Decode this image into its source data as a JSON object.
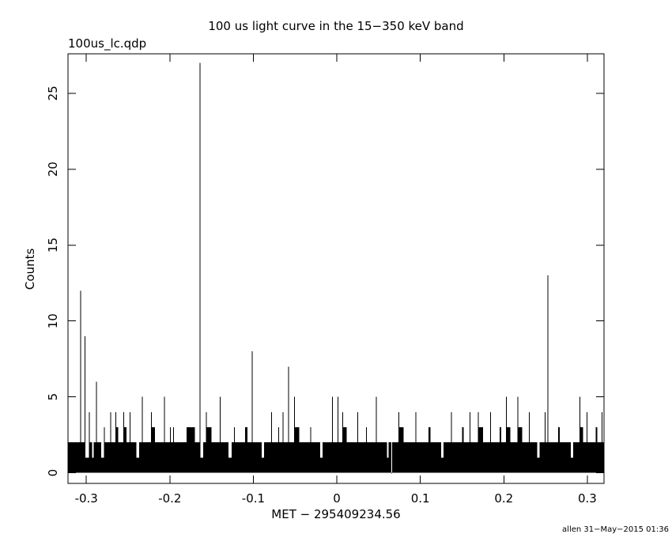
{
  "chart_data": {
    "type": "histogram",
    "title": "100 us light curve in the 15−350 keV band",
    "file_label": "100us_lc.qdp",
    "xlabel": "MET − 295409234.56",
    "ylabel": "Counts",
    "footer": "allen 31−May−2015 01:36",
    "color": "#000000",
    "xlim": [
      -0.322,
      0.32
    ],
    "ylim": [
      -0.7,
      27.6
    ],
    "xticks": [
      -0.3,
      -0.2,
      -0.1,
      0,
      0.1,
      0.2,
      0.3
    ],
    "yticks": [
      0,
      5,
      10,
      15,
      20,
      25
    ],
    "x": [
      -0.322,
      -0.3075,
      -0.3069,
      -0.302,
      -0.3014,
      -0.297,
      -0.2964,
      -0.293,
      -0.291,
      -0.2885,
      -0.2879,
      -0.282,
      -0.279,
      -0.2784,
      -0.2715,
      -0.2709,
      -0.265,
      -0.2644,
      -0.262,
      -0.2555,
      -0.2549,
      -0.252,
      -0.248,
      -0.2474,
      -0.24,
      -0.237,
      -0.2335,
      -0.2329,
      -0.2225,
      -0.2219,
      -0.218,
      -0.207,
      -0.2064,
      -0.2,
      -0.199,
      -0.196,
      -0.195,
      -0.18,
      -0.17,
      -0.1645,
      -0.1639,
      -0.16,
      -0.157,
      -0.1564,
      -0.15,
      -0.14,
      -0.1394,
      -0.13,
      -0.126,
      -0.123,
      -0.1224,
      -0.11,
      -0.107,
      -0.102,
      -0.1014,
      -0.09,
      -0.087,
      -0.0785,
      -0.0779,
      -0.07,
      -0.0694,
      -0.065,
      -0.0644,
      -0.0585,
      -0.0579,
      -0.051,
      -0.0504,
      -0.045,
      -0.032,
      -0.0314,
      -0.02,
      -0.017,
      -0.0055,
      -0.0049,
      0.001,
      0.0016,
      0.0065,
      0.0071,
      0.012,
      0.0245,
      0.0251,
      0.035,
      0.0356,
      0.047,
      0.0476,
      0.06,
      0.062,
      0.0655,
      0.0661,
      0.074,
      0.0746,
      0.08,
      0.094,
      0.0946,
      0.11,
      0.112,
      0.125,
      0.128,
      0.137,
      0.1376,
      0.15,
      0.152,
      0.159,
      0.1596,
      0.169,
      0.1696,
      0.175,
      0.1835,
      0.1841,
      0.195,
      0.197,
      0.2025,
      0.2031,
      0.208,
      0.2165,
      0.2171,
      0.222,
      0.23,
      0.2306,
      0.24,
      0.243,
      0.249,
      0.2496,
      0.2525,
      0.2531,
      0.265,
      0.267,
      0.28,
      0.283,
      0.2905,
      0.2911,
      0.295,
      0.299,
      0.2996,
      0.31,
      0.312,
      0.317,
      0.3176
    ],
    "values": [
      2,
      12,
      2,
      9,
      1,
      4,
      2,
      1,
      2,
      6,
      2,
      1,
      3,
      2,
      4,
      2,
      4,
      3,
      2,
      4,
      3,
      2,
      4,
      2,
      1,
      2,
      5,
      2,
      4,
      3,
      2,
      5,
      2,
      3,
      2,
      3,
      2,
      3,
      2,
      27,
      1,
      2,
      4,
      3,
      2,
      5,
      2,
      1,
      2,
      3,
      2,
      3,
      2,
      8,
      2,
      1,
      2,
      4,
      2,
      3,
      2,
      4,
      2,
      7,
      2,
      5,
      3,
      2,
      3,
      2,
      1,
      2,
      5,
      2,
      5,
      2,
      4,
      3,
      2,
      4,
      2,
      3,
      2,
      5,
      2,
      1,
      2,
      0,
      2,
      4,
      3,
      2,
      4,
      2,
      3,
      2,
      1,
      2,
      4,
      2,
      3,
      2,
      4,
      2,
      4,
      3,
      2,
      4,
      2,
      3,
      2,
      5,
      3,
      2,
      5,
      3,
      2,
      4,
      2,
      1,
      2,
      4,
      2,
      13,
      2,
      3,
      2,
      1,
      2,
      5,
      3,
      2,
      4,
      2,
      3,
      2,
      4,
      2
    ]
  }
}
